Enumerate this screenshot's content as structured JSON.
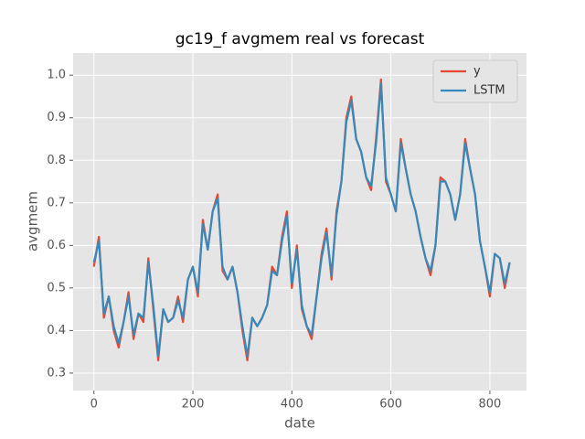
{
  "chart_data": {
    "type": "line",
    "title": "gc19_f avgmem real vs forecast",
    "x_label": "date",
    "y_label": "avgmem",
    "x": [
      0,
      10,
      20,
      30,
      40,
      50,
      60,
      70,
      80,
      90,
      100,
      110,
      120,
      130,
      140,
      150,
      160,
      170,
      180,
      190,
      200,
      210,
      220,
      230,
      240,
      250,
      260,
      270,
      280,
      290,
      300,
      310,
      320,
      330,
      340,
      350,
      360,
      370,
      380,
      390,
      400,
      410,
      420,
      430,
      440,
      450,
      460,
      470,
      480,
      490,
      500,
      510,
      520,
      530,
      540,
      550,
      560,
      570,
      580,
      590,
      600,
      610,
      620,
      630,
      640,
      650,
      660,
      670,
      680,
      690,
      700,
      710,
      720,
      730,
      740,
      750,
      760,
      770,
      780,
      790,
      800,
      810,
      820,
      830,
      840
    ],
    "series": [
      {
        "name": "y",
        "color": "#e24a33",
        "values": [
          0.55,
          0.62,
          0.43,
          0.48,
          0.4,
          0.36,
          0.42,
          0.49,
          0.38,
          0.44,
          0.42,
          0.57,
          0.45,
          0.33,
          0.45,
          0.42,
          0.43,
          0.48,
          0.42,
          0.52,
          0.55,
          0.48,
          0.66,
          0.59,
          0.68,
          0.72,
          0.54,
          0.52,
          0.55,
          0.49,
          0.4,
          0.33,
          0.43,
          0.41,
          0.43,
          0.46,
          0.55,
          0.53,
          0.62,
          0.68,
          0.5,
          0.6,
          0.45,
          0.41,
          0.38,
          0.48,
          0.58,
          0.64,
          0.52,
          0.68,
          0.75,
          0.9,
          0.95,
          0.85,
          0.82,
          0.76,
          0.73,
          0.85,
          0.99,
          0.75,
          0.72,
          0.68,
          0.85,
          0.78,
          0.72,
          0.68,
          0.62,
          0.57,
          0.53,
          0.6,
          0.76,
          0.75,
          0.72,
          0.66,
          0.72,
          0.85,
          0.78,
          0.72,
          0.61,
          0.55,
          0.48,
          0.58,
          0.57,
          0.5,
          0.56
        ]
      },
      {
        "name": "LSTM",
        "color": "#348abd",
        "values": [
          0.56,
          0.61,
          0.44,
          0.48,
          0.41,
          0.37,
          0.42,
          0.48,
          0.39,
          0.44,
          0.43,
          0.56,
          0.46,
          0.34,
          0.45,
          0.42,
          0.43,
          0.47,
          0.43,
          0.52,
          0.55,
          0.49,
          0.65,
          0.59,
          0.68,
          0.71,
          0.55,
          0.52,
          0.55,
          0.49,
          0.41,
          0.34,
          0.43,
          0.41,
          0.43,
          0.46,
          0.54,
          0.53,
          0.61,
          0.67,
          0.51,
          0.59,
          0.46,
          0.41,
          0.39,
          0.48,
          0.57,
          0.63,
          0.53,
          0.67,
          0.75,
          0.89,
          0.94,
          0.85,
          0.82,
          0.76,
          0.74,
          0.84,
          0.98,
          0.76,
          0.72,
          0.68,
          0.84,
          0.78,
          0.72,
          0.68,
          0.62,
          0.57,
          0.54,
          0.6,
          0.75,
          0.75,
          0.72,
          0.66,
          0.72,
          0.84,
          0.78,
          0.72,
          0.61,
          0.55,
          0.49,
          0.58,
          0.57,
          0.51,
          0.56
        ]
      }
    ],
    "xlim": [
      -42,
      874
    ],
    "xticks": [
      0,
      200,
      400,
      600,
      800
    ],
    "ylim": [
      0.259,
      1.052
    ],
    "yticks": [
      0.3,
      0.4,
      0.5,
      0.6,
      0.7,
      0.8,
      0.9,
      {
        "value": 1,
        "label": "1.0"
      }
    ],
    "grid": true,
    "legend": "upper right"
  }
}
